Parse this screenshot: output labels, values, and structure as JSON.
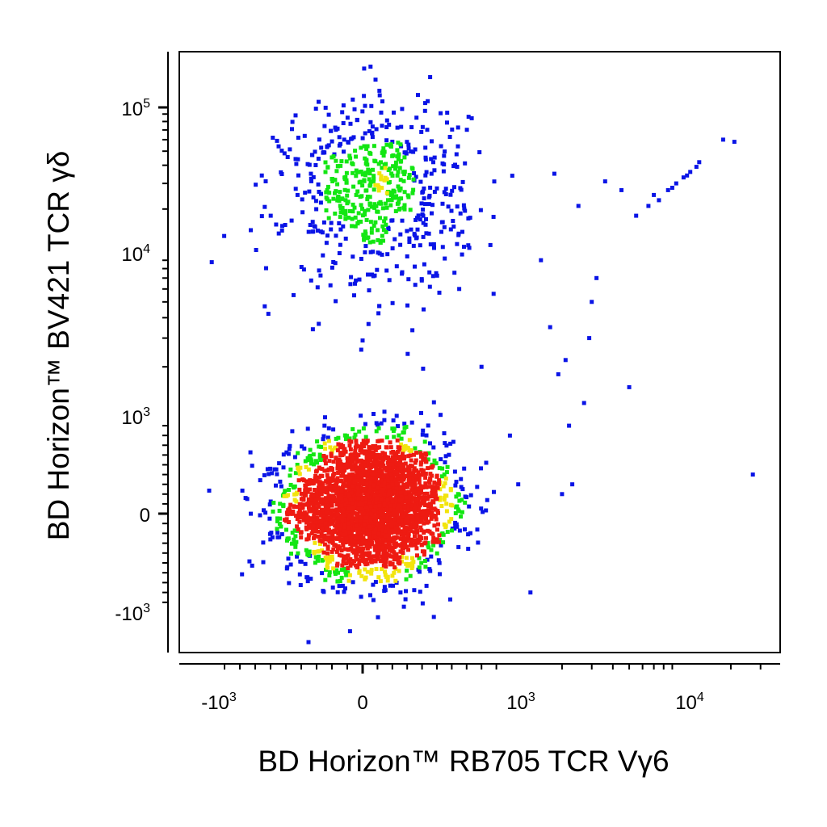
{
  "chart_data": {
    "type": "scatter",
    "title": "",
    "xlabel": "BD Horizon™ RB705 TCR Vγ6",
    "ylabel": "BD Horizon™ BV421 TCR γδ",
    "x_scale": "biexponential",
    "y_scale": "biexponential",
    "x_ticks": [
      {
        "value": -1000,
        "base": "-10",
        "exp": "3"
      },
      {
        "value": 0,
        "base": "0",
        "exp": ""
      },
      {
        "value": 1000,
        "base": "10",
        "exp": "3"
      },
      {
        "value": 10000,
        "base": "10",
        "exp": "4"
      }
    ],
    "y_ticks": [
      {
        "value": 100000,
        "base": "10",
        "exp": "5"
      },
      {
        "value": 10000,
        "base": "10",
        "exp": "4"
      },
      {
        "value": 1000,
        "base": "10",
        "exp": "3"
      },
      {
        "value": 0,
        "base": "0",
        "exp": ""
      },
      {
        "value": -1000,
        "base": "-10",
        "exp": "3"
      }
    ],
    "xlim": [
      -1500,
      60000
    ],
    "ylim": [
      -1500,
      250000
    ],
    "density_colors": {
      "low": "#0a14e6",
      "medium": "#13e613",
      "high": "#f2e40d",
      "highest": "#ee1b12"
    },
    "grid": false,
    "populations": [
      {
        "label": "",
        "x_center": 50,
        "y_center": 80,
        "x_spread": 260,
        "y_spread": 330,
        "events": 3200
      },
      {
        "label": "",
        "x_center": 100,
        "y_center": 26000,
        "x_spread": 300,
        "y_spread": 0.32,
        "events": 650
      }
    ],
    "diagonal_events": [
      [
        5500,
        18000
      ],
      [
        6500,
        21000
      ],
      [
        7500,
        23000
      ],
      [
        8500,
        27000
      ],
      [
        9500,
        30000
      ],
      [
        10500,
        33000
      ],
      [
        11500,
        36000
      ],
      [
        12500,
        39000
      ],
      [
        13000,
        42000
      ],
      [
        7000,
        25000
      ],
      [
        9000,
        28000
      ],
      [
        11000,
        34000
      ],
      [
        18000,
        60000
      ],
      [
        21000,
        58000
      ],
      [
        4500,
        27000
      ],
      [
        3600,
        31000
      ],
      [
        2500,
        21000
      ],
      [
        1800,
        35000
      ],
      [
        1500,
        9000
      ]
    ],
    "sparse_events": [
      [
        27000,
        400
      ],
      [
        1900,
        1800
      ],
      [
        2100,
        2200
      ],
      [
        2700,
        1200
      ],
      [
        2200,
        900
      ],
      [
        2300,
        300
      ],
      [
        2000,
        200
      ],
      [
        1100,
        300
      ],
      [
        1300,
        -800
      ],
      [
        1700,
        3500
      ],
      [
        3000,
        5000
      ],
      [
        3200,
        7000
      ],
      [
        5000,
        1500
      ],
      [
        2900,
        3000
      ],
      [
        800,
        2000
      ],
      [
        650,
        6000
      ],
      [
        -450,
        5500
      ],
      [
        0,
        2900
      ]
    ]
  }
}
